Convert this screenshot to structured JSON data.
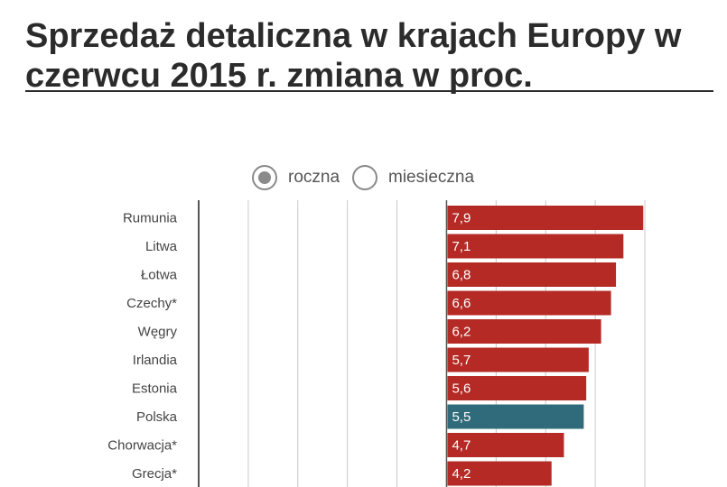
{
  "title": "Sprzedaż detaliczna w krajach Europy w czerwcu 2015 r. zmiana w proc.",
  "toggle": {
    "options": [
      {
        "label": "roczna",
        "selected": true
      },
      {
        "label": "miesieczna",
        "selected": false
      }
    ]
  },
  "colors": {
    "bar": "#b52a24",
    "highlight": "#2f6b7a",
    "grid": "#c8c8c8",
    "axis": "#555555"
  },
  "chart_data": {
    "type": "bar",
    "orientation": "horizontal",
    "categories": [
      "Rumunia",
      "Litwa",
      "Łotwa",
      "Czechy*",
      "Węgry",
      "Irlandia",
      "Estonia",
      "Polska",
      "Chorwacja*",
      "Grecja*"
    ],
    "values": [
      7.9,
      7.1,
      6.8,
      6.6,
      6.2,
      5.7,
      5.6,
      5.5,
      4.7,
      4.2
    ],
    "value_labels": [
      "7,9",
      "7,1",
      "6,8",
      "6,6",
      "6,2",
      "5,7",
      "5,6",
      "5,5",
      "4,7",
      "4,2"
    ],
    "highlight": "Polska",
    "xlim": [
      -10,
      8
    ],
    "grid_step": 2,
    "grid": true
  }
}
